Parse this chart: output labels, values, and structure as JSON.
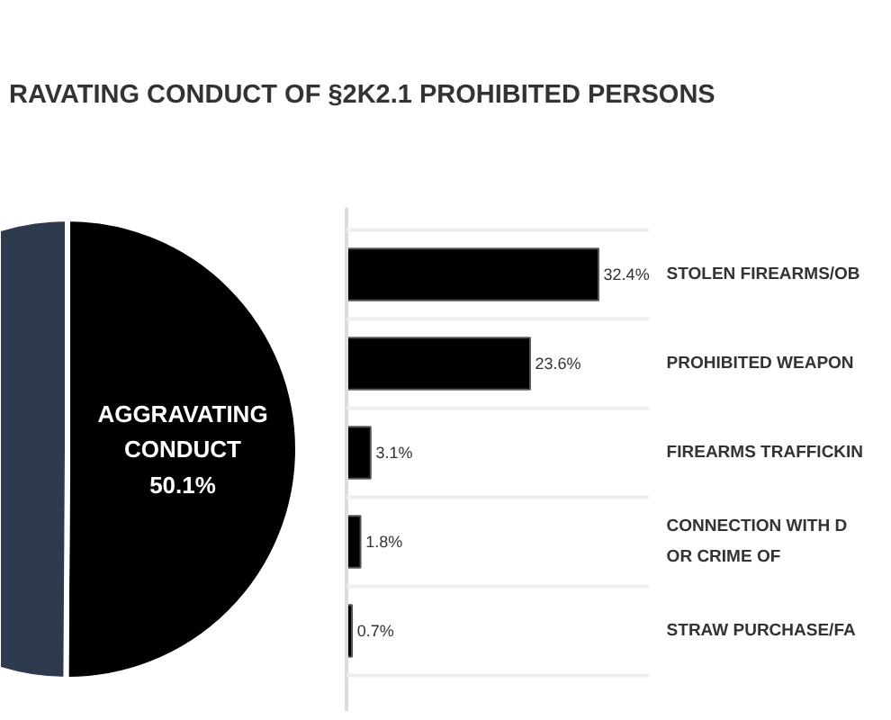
{
  "chart_data": [
    {
      "type": "pie",
      "title": "RAVATING CONDUCT OF §2K2.1 PROHIBITED PERSONS",
      "categories": [
        null,
        "AGGRAVATING CONDUCT"
      ],
      "values": [
        49.9,
        50.1
      ],
      "colors": [
        "#2e3a4e",
        "#000000"
      ],
      "value_labels": [
        null,
        "50.1%"
      ]
    },
    {
      "type": "bar",
      "orientation": "horizontal",
      "categories": [
        "STOLEN FIREARMS/OB",
        "PROHIBITED WEAPON",
        "FIREARMS TRAFFICKIN",
        "CONNECTION WITH D\nOR CRIME OF",
        "STRAW PURCHASE/FA"
      ],
      "values": [
        32.4,
        23.6,
        3.1,
        1.8,
        0.7
      ],
      "color": "#000000",
      "value_labels": [
        "32.4%",
        "23.6%",
        "3.1%",
        "1.8%",
        "0.7%"
      ]
    }
  ]
}
